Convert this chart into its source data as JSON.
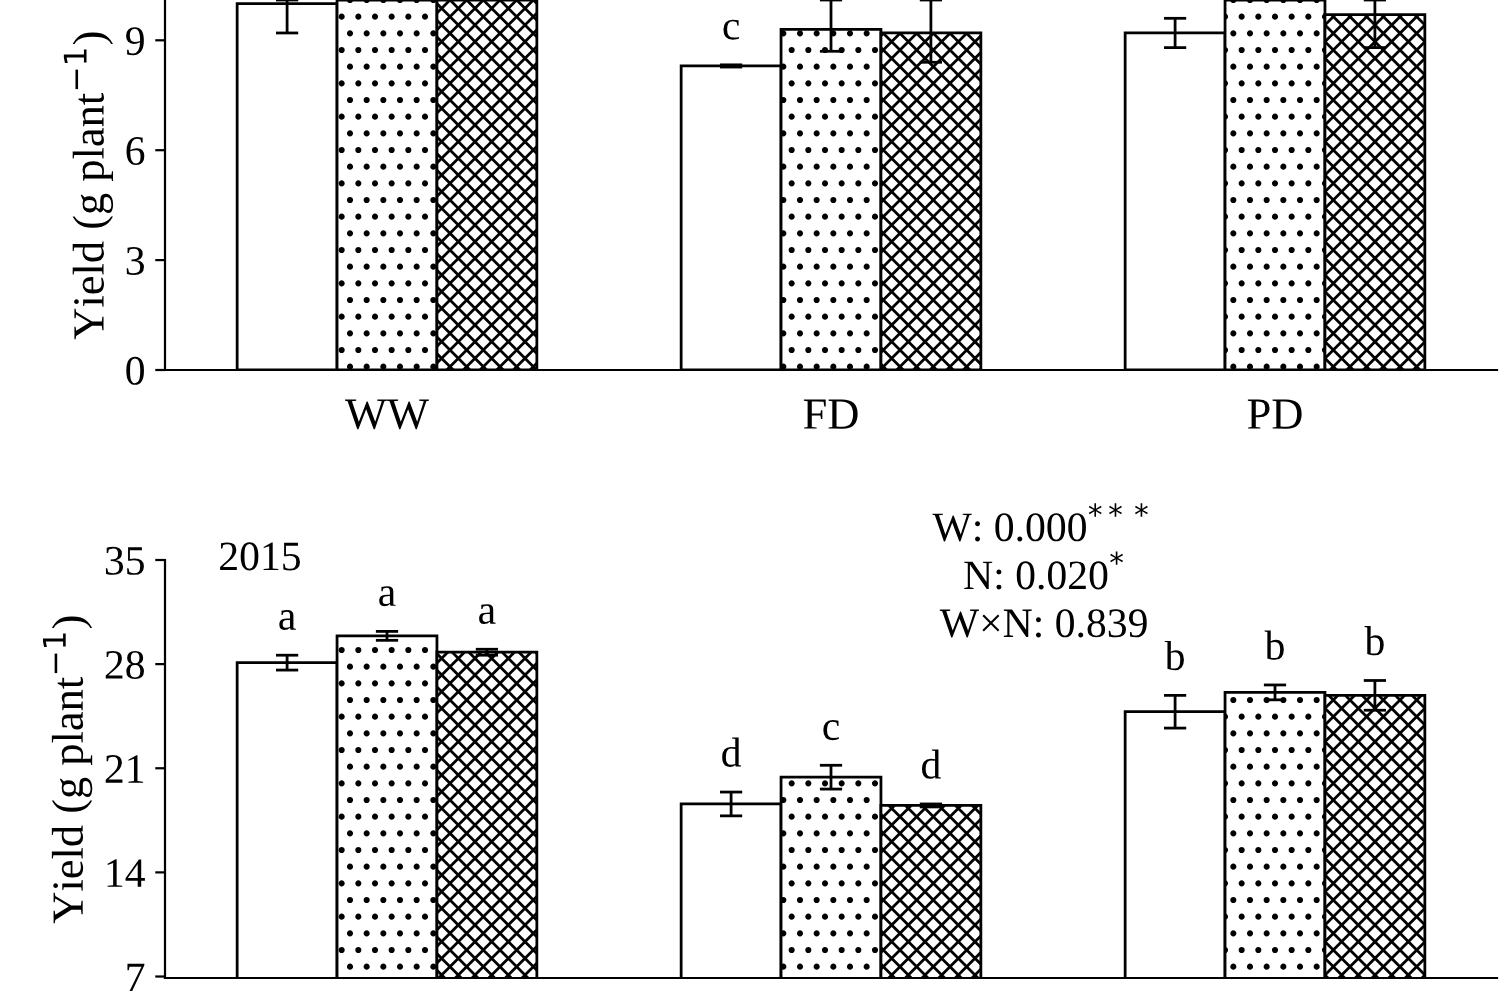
{
  "chart_data": [
    {
      "type": "bar",
      "ylabel": "Yield (g plant$^{−1}$)",
      "categories": [
        "WW",
        "FD",
        "PD"
      ],
      "ylim": [
        0,
        10.1
      ],
      "yticks": [
        0,
        3,
        6,
        9
      ],
      "grid": false,
      "legend": false,
      "series": [
        {
          "color": "#ffffff",
          "values": [
            10.0,
            8.3,
            9.2
          ],
          "errors": [
            [
              9.2,
              10.1
            ],
            0.03,
            0.4
          ],
          "value_labels": [
            null,
            "c",
            null
          ]
        },
        {
          "color": "#ffffff",
          "values": [
            10.1,
            9.3,
            10.1
          ],
          "errors": [
            null,
            [
              8.7,
              10.1
            ],
            null
          ],
          "value_labels": [
            null,
            null,
            null
          ]
        },
        {
          "color": "#ffffff",
          "values": [
            10.1,
            9.2,
            9.7
          ],
          "errors": [
            null,
            [
              8.4,
              10.1
            ],
            [
              8.8,
              10.1
            ]
          ],
          "value_labels": [
            null,
            null,
            null
          ]
        }
      ]
    },
    {
      "type": "bar",
      "ylabel": "Yield (g plant$^{−1}$)",
      "categories": [
        null,
        null,
        null
      ],
      "ylim": [
        6.9,
        35
      ],
      "yticks": [
        7,
        14,
        21,
        28,
        35
      ],
      "grid": false,
      "legend": false,
      "tick_labels": "y",
      "annotations": [
        "2015",
        "W: 0.000$^{***}$",
        "N: 0.020$^{*}$",
        "W×N: 0.839"
      ],
      "series": [
        {
          "color": "#ffffff",
          "values": [
            28.1,
            18.6,
            24.8
          ],
          "errors": [
            0.5,
            0.8,
            1.1
          ],
          "value_labels": [
            "a",
            "d",
            "b"
          ]
        },
        {
          "color": "#ffffff",
          "values": [
            29.9,
            20.4,
            26.1
          ],
          "errors": [
            0.3,
            0.8,
            0.5
          ],
          "value_labels": [
            "a",
            "c",
            "b"
          ]
        },
        {
          "color": "#ffffff",
          "values": [
            28.8,
            18.5,
            25.9
          ],
          "errors": [
            0.2,
            0.1,
            1.0
          ],
          "value_labels": [
            "a",
            "d",
            "b"
          ]
        }
      ]
    }
  ]
}
